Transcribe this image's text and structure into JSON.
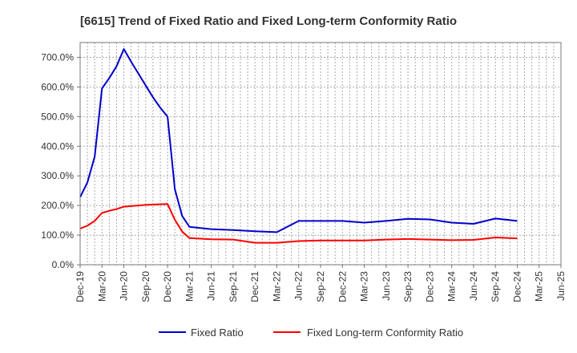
{
  "chart_data": {
    "type": "line",
    "title": "[6615]  Trend of Fixed Ratio and Fixed Long-term Conformity Ratio",
    "xlabel": "",
    "ylabel": "",
    "ylim": [
      0,
      750
    ],
    "y_ticks": [
      {
        "value": 0,
        "label": "0.0%"
      },
      {
        "value": 100,
        "label": "100.0%"
      },
      {
        "value": 200,
        "label": "200.0%"
      },
      {
        "value": 300,
        "label": "300.0%"
      },
      {
        "value": 400,
        "label": "400.0%"
      },
      {
        "value": 500,
        "label": "500.0%"
      },
      {
        "value": 600,
        "label": "600.0%"
      },
      {
        "value": 700,
        "label": "700.0%"
      }
    ],
    "x_range_months": [
      0,
      66
    ],
    "x_ticks": [
      {
        "m": 0,
        "label": "Dec-19"
      },
      {
        "m": 3,
        "label": "Mar-20"
      },
      {
        "m": 6,
        "label": "Jun-20"
      },
      {
        "m": 9,
        "label": "Sep-20"
      },
      {
        "m": 12,
        "label": "Dec-20"
      },
      {
        "m": 15,
        "label": "Mar-21"
      },
      {
        "m": 18,
        "label": "Jun-21"
      },
      {
        "m": 21,
        "label": "Sep-21"
      },
      {
        "m": 24,
        "label": "Dec-21"
      },
      {
        "m": 27,
        "label": "Mar-22"
      },
      {
        "m": 30,
        "label": "Jun-22"
      },
      {
        "m": 33,
        "label": "Sep-22"
      },
      {
        "m": 36,
        "label": "Dec-22"
      },
      {
        "m": 39,
        "label": "Mar-23"
      },
      {
        "m": 42,
        "label": "Jun-23"
      },
      {
        "m": 45,
        "label": "Sep-23"
      },
      {
        "m": 48,
        "label": "Dec-23"
      },
      {
        "m": 51,
        "label": "Mar-24"
      },
      {
        "m": 54,
        "label": "Jun-24"
      },
      {
        "m": 57,
        "label": "Sep-24"
      },
      {
        "m": 60,
        "label": "Dec-24"
      },
      {
        "m": 63,
        "label": "Mar-25"
      },
      {
        "m": 66,
        "label": "Jun-25"
      }
    ],
    "grid": true,
    "legend_position": "bottom-center",
    "series": [
      {
        "name": "Fixed Ratio",
        "color": "#0000cc",
        "x": [
          0,
          1,
          2,
          3,
          4,
          5,
          6,
          7,
          8,
          9,
          10,
          11,
          12,
          13,
          14,
          15,
          18,
          21,
          24,
          27,
          30,
          33,
          36,
          39,
          42,
          45,
          48,
          51,
          54,
          57,
          60
        ],
        "values": [
          228,
          278,
          365,
          595,
          630,
          670,
          728,
          685,
          645,
          605,
          565,
          530,
          500,
          255,
          165,
          128,
          120,
          117,
          113,
          110,
          148,
          148,
          148,
          142,
          148,
          155,
          153,
          142,
          138,
          156,
          148
        ]
      },
      {
        "name": "Fixed Long-term Conformity Ratio",
        "color": "#ff0000",
        "x": [
          0,
          1,
          2,
          3,
          4,
          5,
          6,
          7,
          8,
          9,
          10,
          11,
          12,
          13,
          14,
          15,
          18,
          21,
          24,
          27,
          30,
          33,
          36,
          39,
          42,
          45,
          48,
          51,
          54,
          57,
          60
        ],
        "values": [
          122,
          132,
          148,
          175,
          182,
          188,
          196,
          198,
          200,
          202,
          203,
          204,
          205,
          152,
          112,
          90,
          86,
          85,
          74,
          74,
          80,
          82,
          82,
          82,
          85,
          87,
          85,
          83,
          84,
          92,
          89
        ]
      }
    ]
  }
}
